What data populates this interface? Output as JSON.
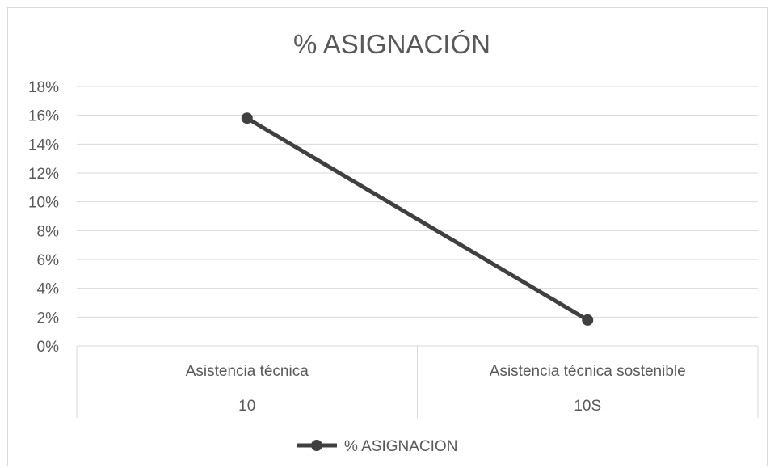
{
  "chart_data": {
    "type": "line",
    "title": "% ASIGNACIÓN",
    "categories": [
      {
        "label": "Asistencia técnica",
        "sublabel": "10"
      },
      {
        "label": "Asistencia técnica sostenible",
        "sublabel": "10S"
      }
    ],
    "series": [
      {
        "name": "% ASIGNACION",
        "values": [
          0.158,
          0.018
        ],
        "color": "#404040"
      }
    ],
    "ylim": [
      0,
      0.18
    ],
    "yticks": [
      0,
      0.02,
      0.04,
      0.06,
      0.08,
      0.1,
      0.12,
      0.14,
      0.16,
      0.18
    ],
    "ytick_labels": [
      "0%",
      "2%",
      "4%",
      "6%",
      "8%",
      "10%",
      "12%",
      "14%",
      "16%",
      "18%"
    ],
    "grid": true,
    "legend_position": "bottom",
    "colors": {
      "grid": "#d9d9d9",
      "text": "#595959",
      "line": "#404040"
    }
  }
}
